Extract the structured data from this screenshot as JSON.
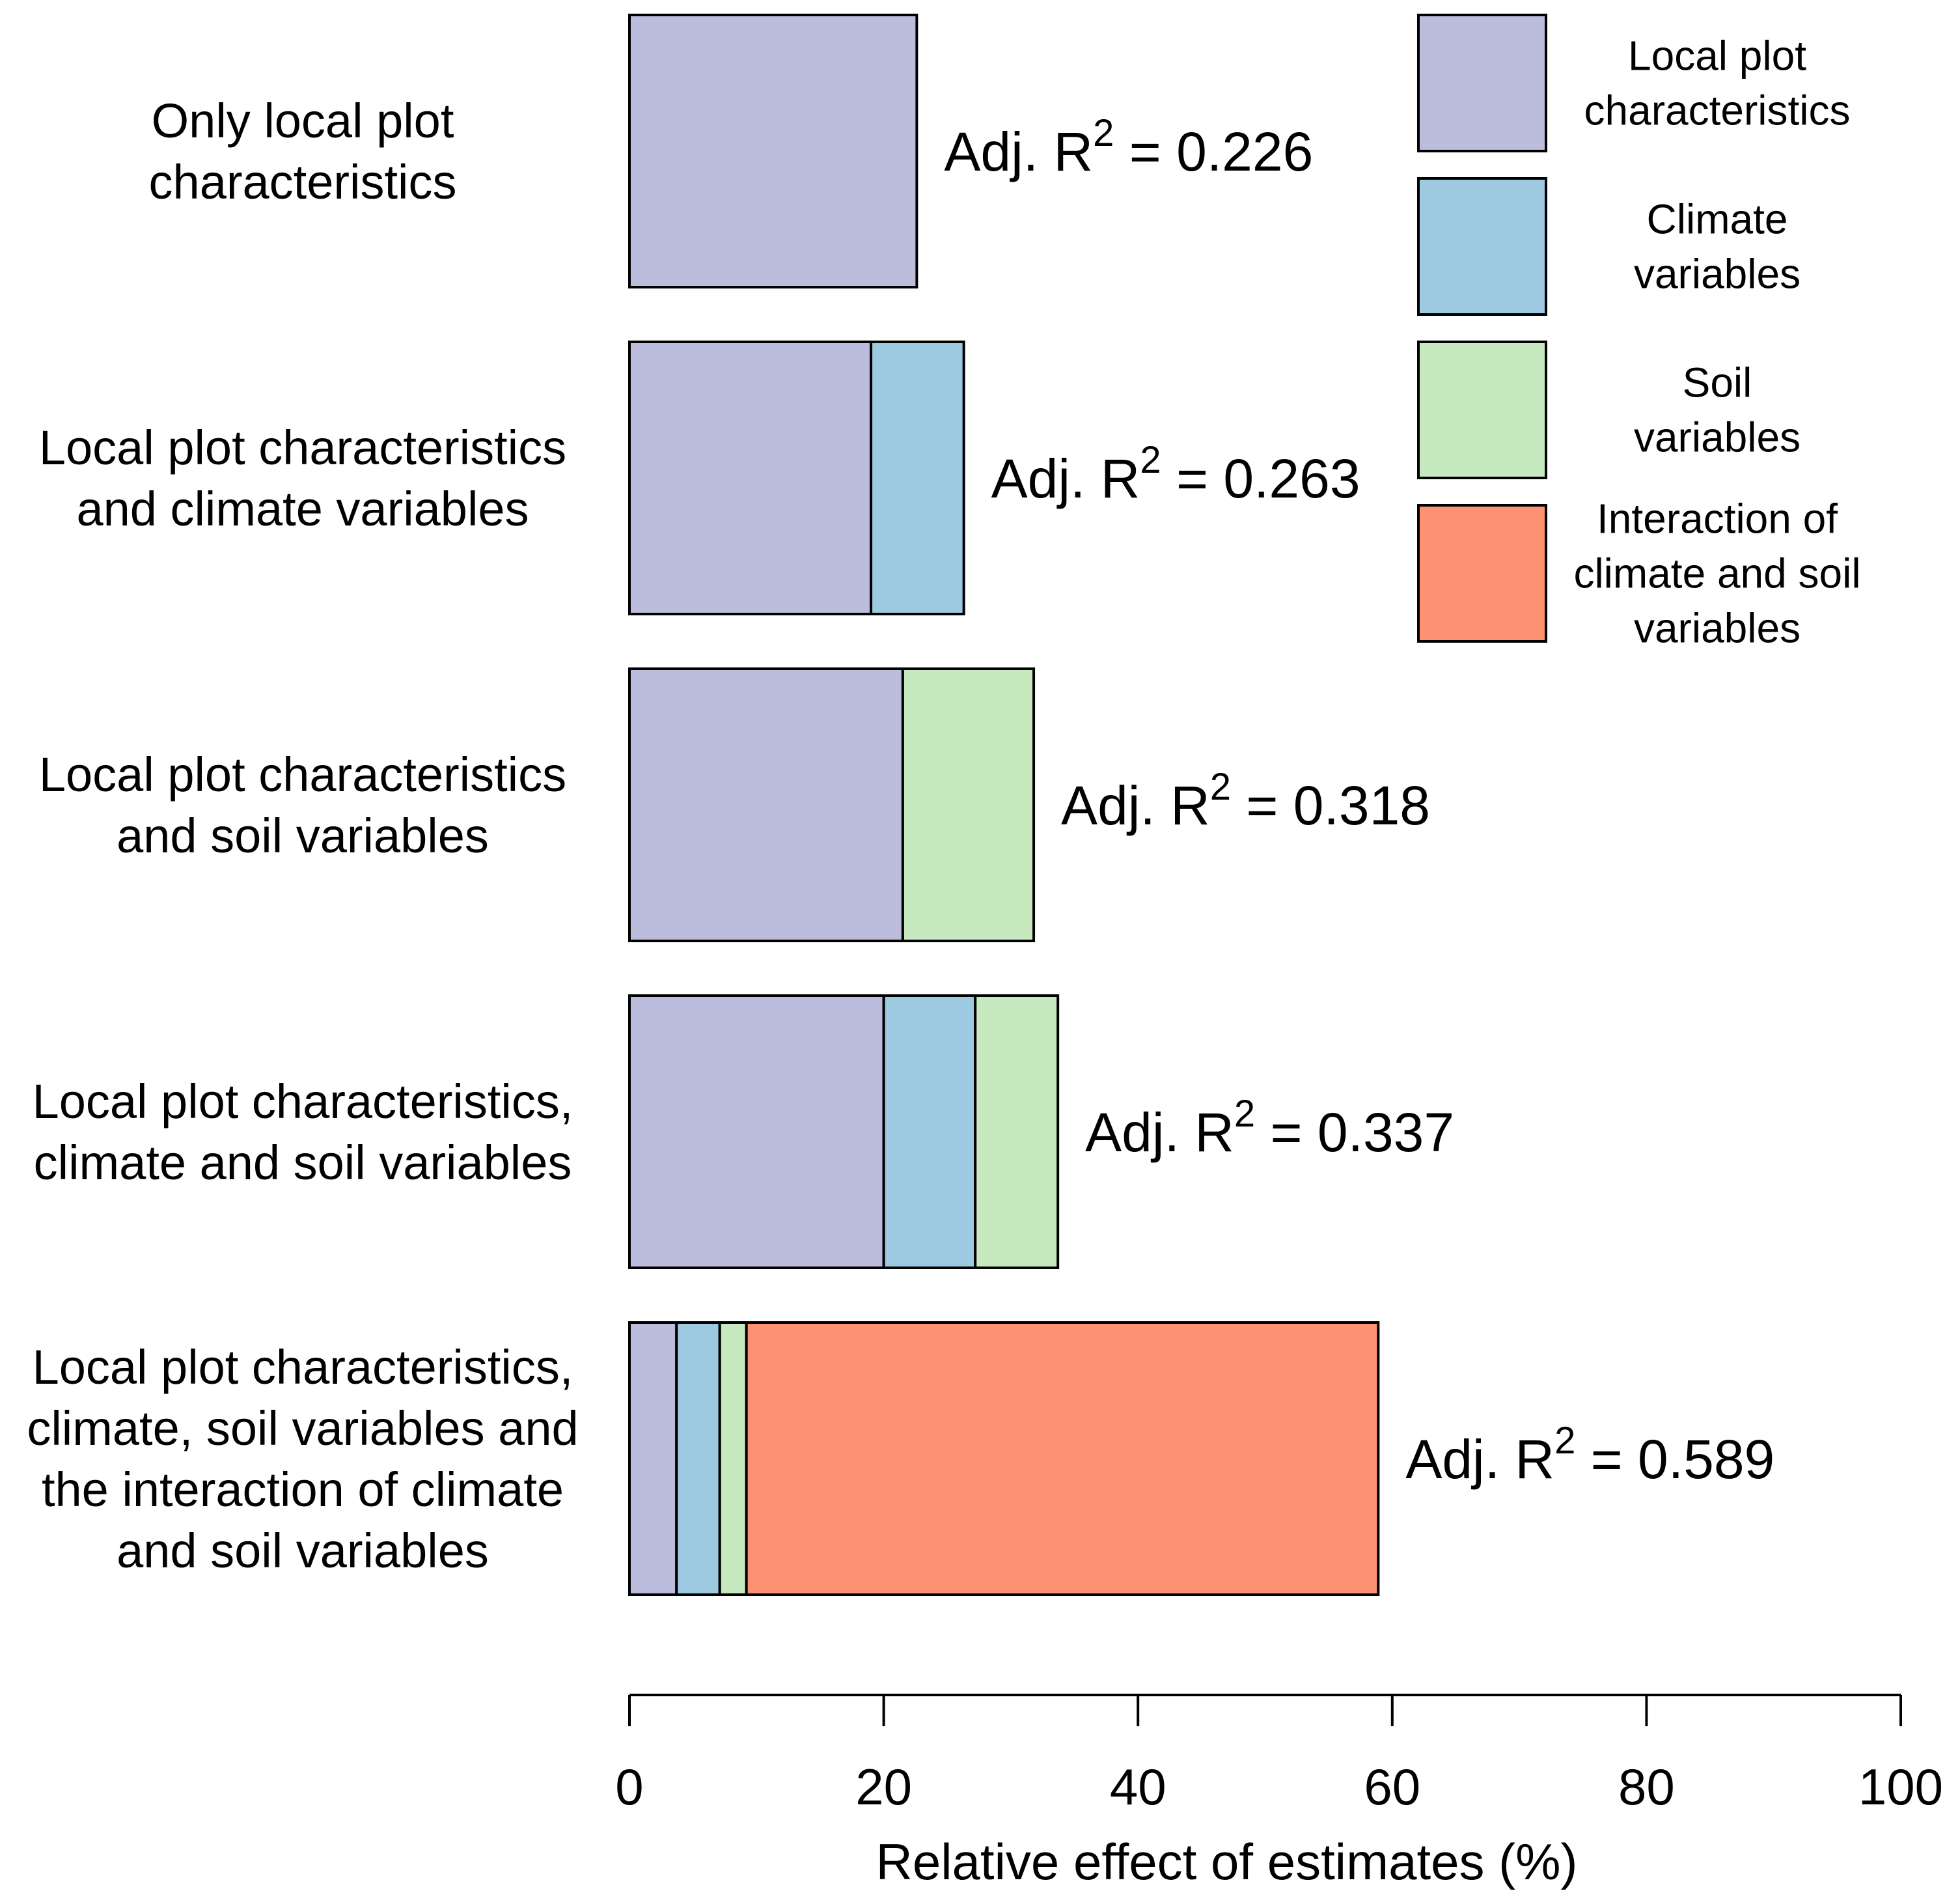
{
  "chart_data": {
    "type": "bar",
    "orientation": "horizontal",
    "stacked": true,
    "xlabel": "Relative effect of estimates (%)",
    "xlim": [
      0,
      100
    ],
    "xticks": [
      0,
      20,
      40,
      60,
      80,
      100
    ],
    "legend_position": "top-right",
    "series": [
      {
        "key": "local",
        "name": "Local plot characteristics",
        "color": "#BCBDDC"
      },
      {
        "key": "climate",
        "name": "Climate variables",
        "color": "#9ECAE1"
      },
      {
        "key": "soil",
        "name": "Soil variables",
        "color": "#C7E9C0"
      },
      {
        "key": "interaction",
        "name": "Interaction of climate and soil variables",
        "color": "#FC9272"
      }
    ],
    "bars": [
      {
        "category": "Only local plot characteristics",
        "label_lines": [
          "Only local plot",
          "characteristics"
        ],
        "r2_prefix": "Adj. R",
        "r2_sup": "2",
        "r2_value": "= 0.226",
        "segments": [
          {
            "series": "local",
            "value": 22.6
          }
        ]
      },
      {
        "category": "Local plot characteristics and climate variables",
        "label_lines": [
          "Local plot characteristics",
          "and climate variables"
        ],
        "r2_prefix": "Adj. R",
        "r2_sup": "2",
        "r2_value": "= 0.263",
        "segments": [
          {
            "series": "local",
            "value": 19.0
          },
          {
            "series": "climate",
            "value": 7.3
          }
        ]
      },
      {
        "category": "Local plot characteristics and soil variables",
        "label_lines": [
          "Local plot characteristics",
          "and soil variables"
        ],
        "r2_prefix": "Adj. R",
        "r2_sup": "2",
        "r2_value": "= 0.318",
        "segments": [
          {
            "series": "local",
            "value": 21.5
          },
          {
            "series": "soil",
            "value": 10.3
          }
        ]
      },
      {
        "category": "Local plot characteristics, climate and soil variables",
        "label_lines": [
          "Local plot characteristics,",
          "climate and soil variables"
        ],
        "r2_prefix": "Adj. R",
        "r2_sup": "2",
        "r2_value": "= 0.337",
        "segments": [
          {
            "series": "local",
            "value": 20.0
          },
          {
            "series": "climate",
            "value": 7.2
          },
          {
            "series": "soil",
            "value": 6.5
          }
        ]
      },
      {
        "category": "Local plot characteristics, climate, soil variables and the interaction of climate and soil variables",
        "label_lines": [
          "Local plot characteristics,",
          "climate, soil variables and",
          "the interaction of climate",
          "and soil variables"
        ],
        "r2_prefix": "Adj. R",
        "r2_sup": "2",
        "r2_value": "= 0.589",
        "segments": [
          {
            "series": "local",
            "value": 3.7
          },
          {
            "series": "climate",
            "value": 3.4
          },
          {
            "series": "soil",
            "value": 2.1
          },
          {
            "series": "interaction",
            "value": 49.7
          }
        ]
      }
    ],
    "legend": [
      {
        "series": "local",
        "lines": [
          "Local plot",
          "characteristics"
        ]
      },
      {
        "series": "climate",
        "lines": [
          "Climate",
          "variables"
        ]
      },
      {
        "series": "soil",
        "lines": [
          "Soil",
          "variables"
        ]
      },
      {
        "series": "interaction",
        "lines": [
          "Interaction of",
          "climate and soil",
          "variables"
        ]
      }
    ]
  }
}
